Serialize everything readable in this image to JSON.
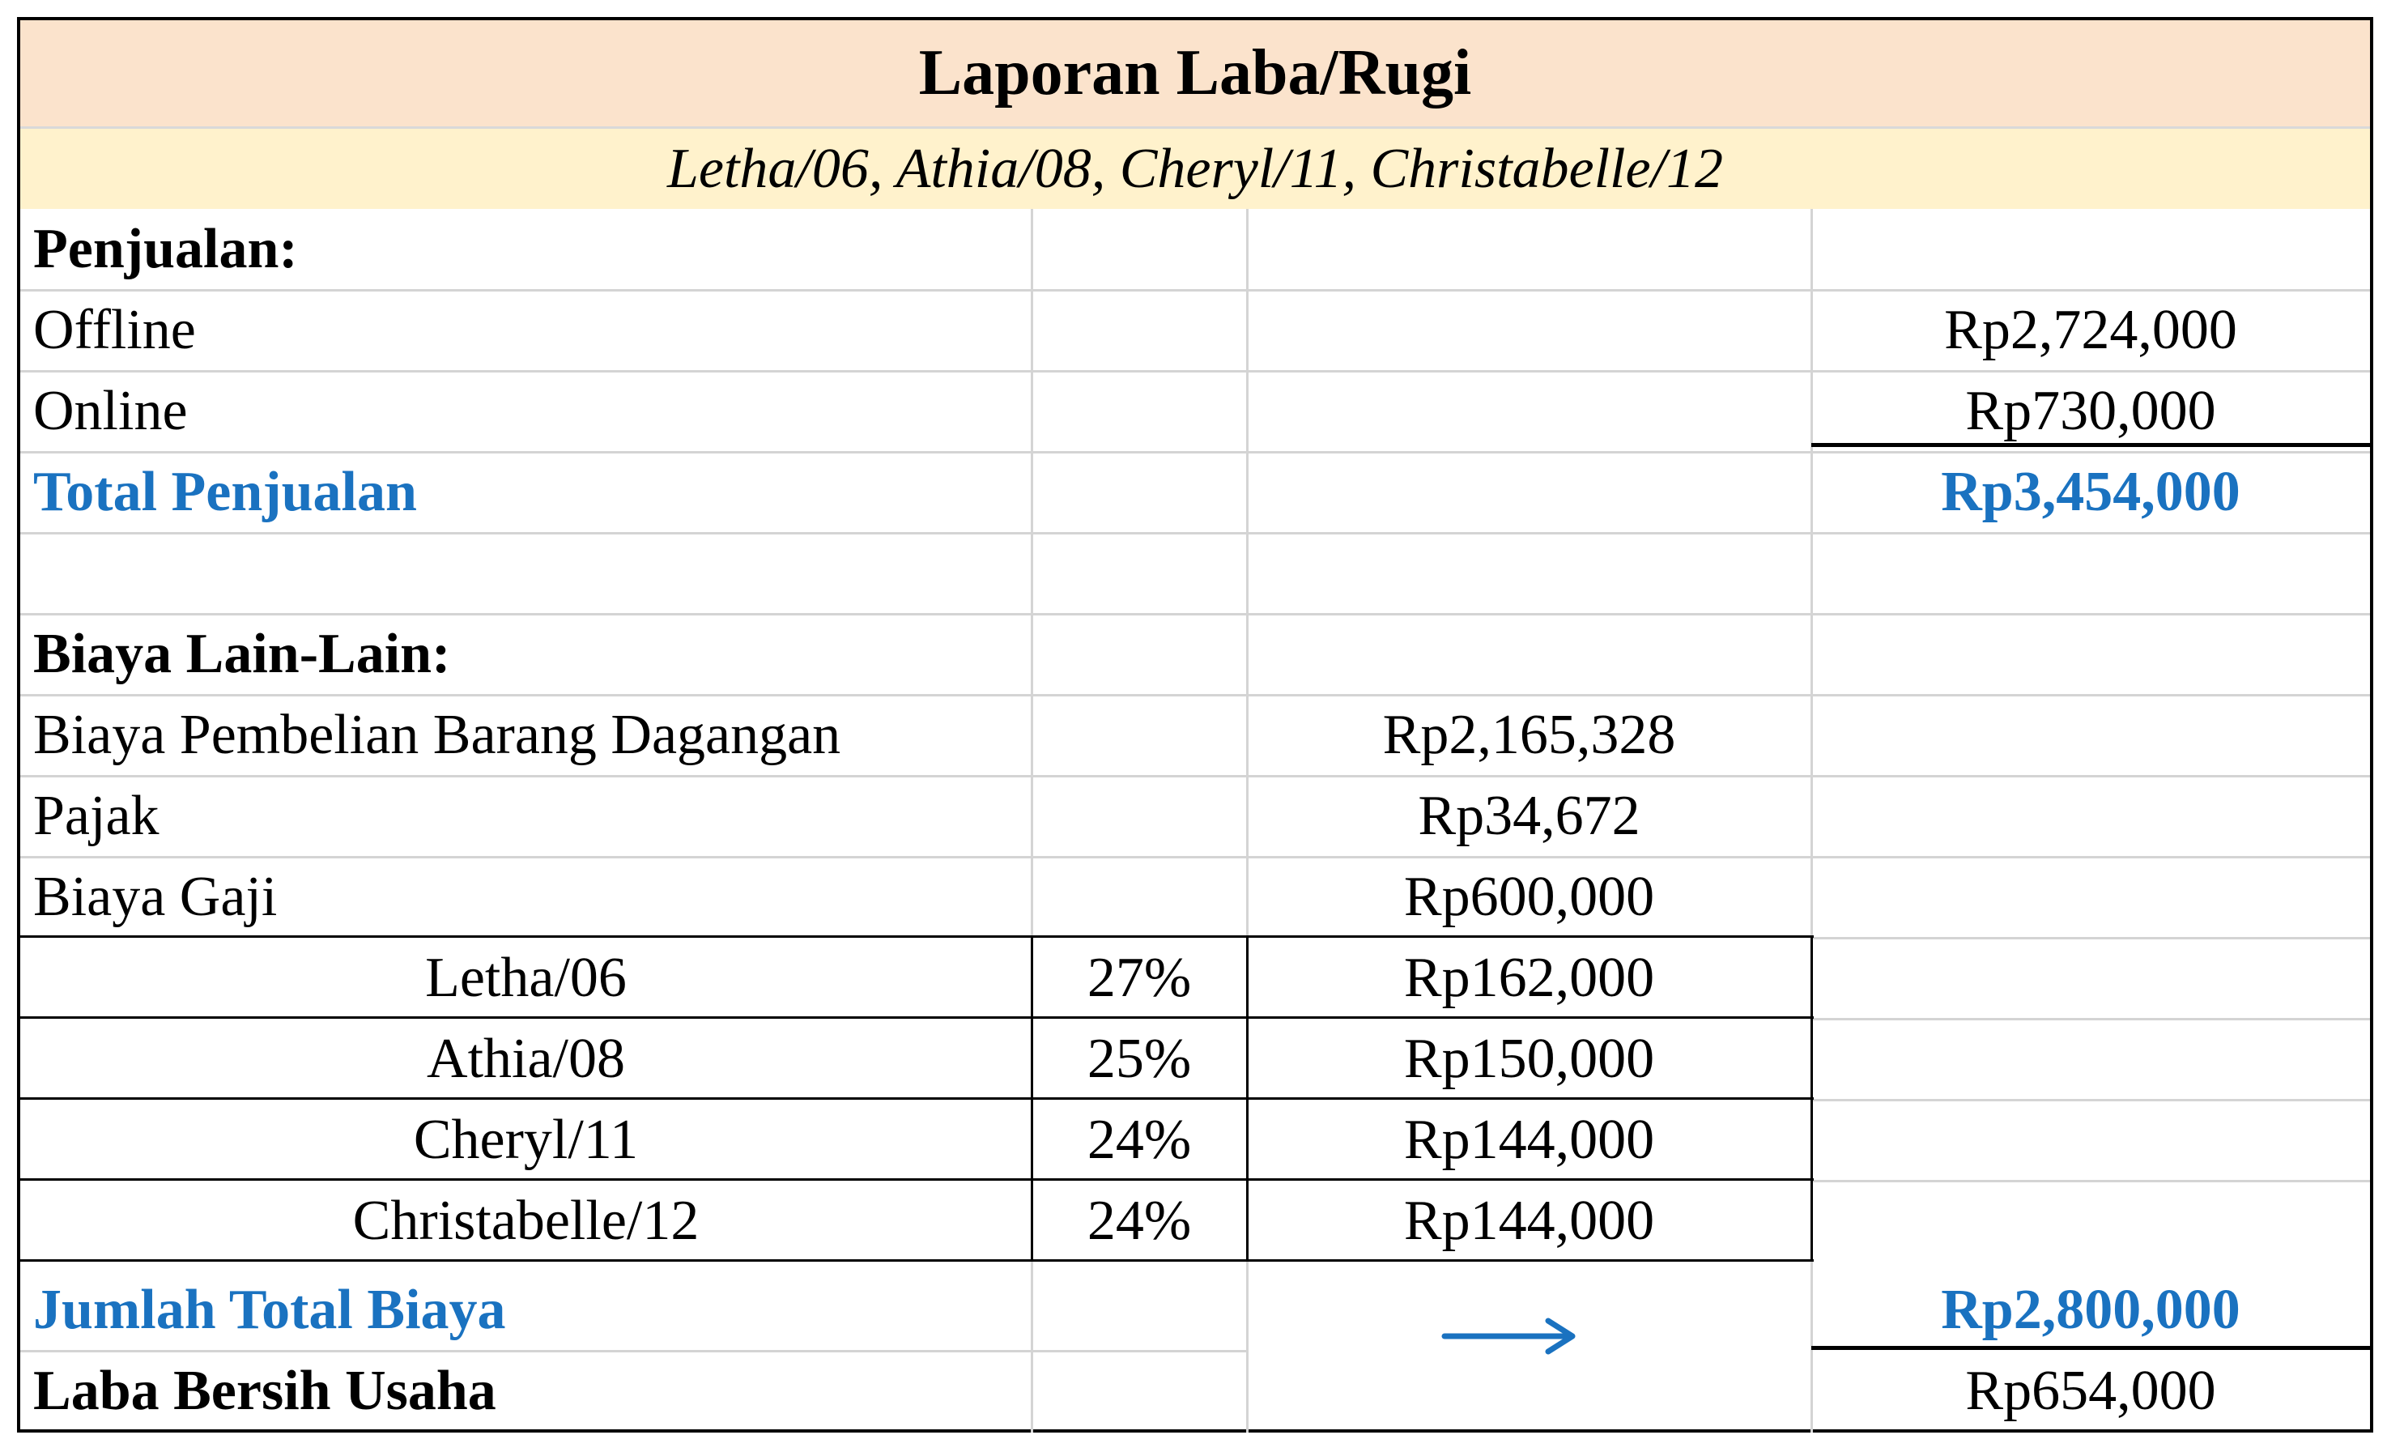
{
  "report": {
    "title": "Laporan Laba/Rugi",
    "subtitle": "Letha/06, Athia/08, Cheryl/11, Christabelle/12"
  },
  "rows": {
    "penjualan_header": "Penjualan:",
    "offline": {
      "label": "Offline",
      "value": "Rp2,724,000"
    },
    "online": {
      "label": "Online",
      "value": "Rp730,000"
    },
    "total_penjualan": {
      "label": "Total Penjualan",
      "value": "Rp3,454,000"
    },
    "biaya_header": "Biaya Lain-Lain:",
    "biaya_pembelian": {
      "label": "Biaya Pembelian Barang Dagangan",
      "value": "Rp2,165,328"
    },
    "pajak": {
      "label": "Pajak",
      "value": "Rp34,672"
    },
    "biaya_gaji": {
      "label": "Biaya Gaji",
      "value": "Rp600,000"
    },
    "gaji_breakdown": [
      {
        "name": "Letha/06",
        "percent": "27%",
        "amount": "Rp162,000"
      },
      {
        "name": "Athia/08",
        "percent": "25%",
        "amount": "Rp150,000"
      },
      {
        "name": "Cheryl/11",
        "percent": "24%",
        "amount": "Rp144,000"
      },
      {
        "name": "Christabelle/12",
        "percent": "24%",
        "amount": "Rp144,000"
      }
    ],
    "jumlah_total_biaya": {
      "label": "Jumlah Total Biaya",
      "value": "Rp2,800,000"
    },
    "laba_bersih": {
      "label": "Laba Bersih Usaha",
      "value": "Rp654,000"
    }
  },
  "colors": {
    "title_band": "#fbe3cc",
    "subtitle_band": "#fff2cc",
    "total_text": "#1a72c0",
    "gridline": "#d4d4d4"
  },
  "icons": {
    "arrow": "arrow-right-icon"
  }
}
